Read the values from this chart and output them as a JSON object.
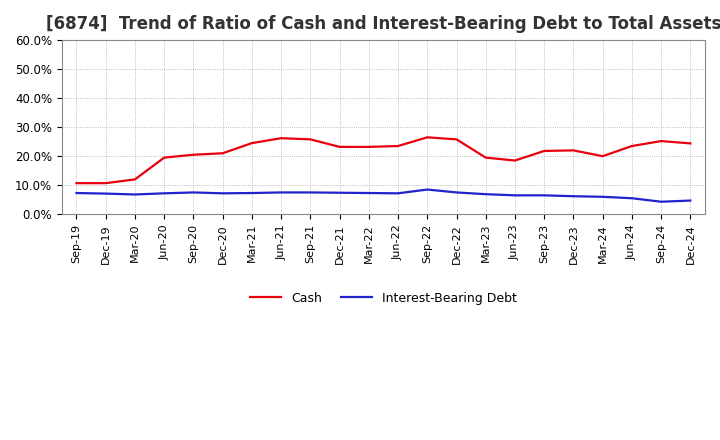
{
  "title": "[6874]  Trend of Ratio of Cash and Interest-Bearing Debt to Total Assets",
  "x_labels": [
    "Sep-19",
    "Dec-19",
    "Mar-20",
    "Jun-20",
    "Sep-20",
    "Dec-20",
    "Mar-21",
    "Jun-21",
    "Sep-21",
    "Dec-21",
    "Mar-22",
    "Jun-22",
    "Sep-22",
    "Dec-22",
    "Mar-23",
    "Jun-23",
    "Sep-23",
    "Dec-23",
    "Mar-24",
    "Jun-24",
    "Sep-24",
    "Dec-24"
  ],
  "cash": [
    0.107,
    0.107,
    0.12,
    0.195,
    0.205,
    0.21,
    0.245,
    0.262,
    0.258,
    0.232,
    0.232,
    0.235,
    0.265,
    0.258,
    0.195,
    0.185,
    0.218,
    0.22,
    0.2,
    0.235,
    0.252,
    0.244
  ],
  "debt": [
    0.073,
    0.071,
    0.068,
    0.072,
    0.075,
    0.072,
    0.073,
    0.075,
    0.075,
    0.074,
    0.073,
    0.072,
    0.085,
    0.075,
    0.069,
    0.065,
    0.065,
    0.062,
    0.06,
    0.055,
    0.043,
    0.047
  ],
  "cash_color": "#e8000d",
  "debt_color": "#2222cc",
  "background_color": "#ffffff",
  "grid_color": "#aaaaaa",
  "ylim": [
    0.0,
    0.6
  ],
  "yticks": [
    0.0,
    0.1,
    0.2,
    0.3,
    0.4,
    0.5,
    0.6
  ],
  "legend_cash": "Cash",
  "legend_debt": "Interest-Bearing Debt",
  "title_fontsize": 12,
  "line_width": 1.6
}
